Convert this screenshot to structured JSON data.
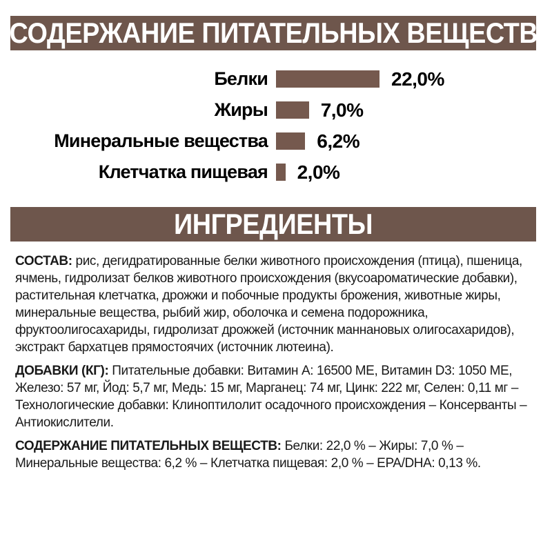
{
  "page": {
    "background": "#FFFFFF",
    "accent_brown": "#6E564C",
    "text_color": "#1A1A1A"
  },
  "nutrients_band": {
    "title": "СОДЕРЖАНИЕ ПИТАТЕЛЬНЫХ ВЕЩЕСТВ"
  },
  "chart_data": {
    "type": "bar",
    "orientation": "horizontal",
    "categories": [
      "Белки",
      "Жиры",
      "Минеральные вещества",
      "Клетчатка пищевая"
    ],
    "values": [
      22.0,
      7.0,
      6.2,
      2.0
    ],
    "value_labels": [
      "22,0%",
      "7,0%",
      "6,2%",
      "2,0%"
    ],
    "unit": "%",
    "xlim": [
      0,
      22
    ],
    "bar_color": "#75594E",
    "grid": false,
    "legend": false,
    "title": "",
    "xlabel": "",
    "ylabel": ""
  },
  "ingredients_band": {
    "title": "ИНГРЕДИЕНТЫ"
  },
  "sections": {
    "composition": {
      "label": "СОСТАВ:",
      "text": " рис, дегидратированные белки животного происхождения (птица), пшеница, ячмень, гидролизат белков животного происхождения (вкусоароматические добавки), растительная клетчатка, дрожжи и побочные продукты брожения, животные жиры, минеральные вещества, рыбий жир, оболочка и семена подорожника, фруктоолигосахариды, гидролизат дрожжей (источник маннановых олигосахаридов), экстракт бархатцев прямостоячих (источник лютеина)."
    },
    "additives": {
      "label": "ДОБАВКИ (КГ):",
      "text": " Питательные добавки: Витамин A: 16500 МЕ, Витамин D3: 1050 МЕ, Железо: 57 мг, Йод: 5,7 мг, Медь: 15 мг, Марганец: 74 мг, Цинк: 222 мг, Селен: 0,11 мг – Технологические добавки: Клиноптилолит осадочного происхождения – Консерванты – Антиокислители."
    },
    "analysis": {
      "label": "СОДЕРЖАНИЕ ПИТАТЕЛЬНЫХ ВЕЩЕСТВ:",
      "text": " Белки: 22,0 % – Жиры: 7,0 % – Минеральные вещества: 6,2 % – Клетчатка пищевая: 2,0 % – EPA/DHA: 0,13 %."
    }
  }
}
